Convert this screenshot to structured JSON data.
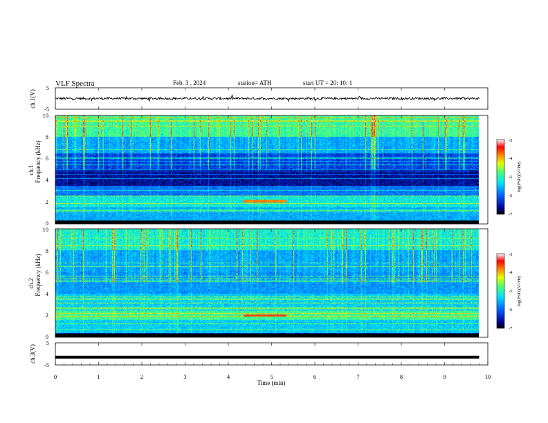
{
  "header": {
    "title": "VLF  Spectra",
    "date": "Feb. 3  , 2024",
    "station": "station= ATH",
    "start": "start  UT  =   20: 10: 1"
  },
  "chart_data": [
    {
      "name": "ch1-waveform",
      "type": "line",
      "ylabel": "ch.1(V)",
      "ylim": [
        -5,
        5
      ],
      "yticks": [
        "5",
        "-5"
      ],
      "x_range_min": [
        0,
        9.8
      ],
      "baseline_v": 0
    },
    {
      "name": "ch1-spectrogram",
      "type": "heatmap",
      "ylabel": "ch.1\nFrequency (kHz)",
      "ylabel_lines": [
        "ch.1",
        "Frequency (kHz)"
      ],
      "ylim": [
        0,
        10
      ],
      "yticks": [
        "0",
        "2",
        "4",
        "6",
        "8",
        "10"
      ],
      "x_range_min": [
        0,
        9.8
      ],
      "colorbar": {
        "label": "log(PSD)(V²/Hz)",
        "ticks": [
          "-3",
          "-4",
          "-5",
          "-6",
          "-7"
        ],
        "range": [
          -7,
          -3
        ]
      },
      "bands_khz": [
        {
          "from": 0,
          "to": 0.3,
          "level": -7
        },
        {
          "from": 0.3,
          "to": 1.5,
          "level": -5.6
        },
        {
          "from": 1.5,
          "to": 2.6,
          "level": -5.2
        },
        {
          "from": 2.6,
          "to": 3.5,
          "level": -5.9
        },
        {
          "from": 3.5,
          "to": 5.0,
          "level": -6.6
        },
        {
          "from": 5.0,
          "to": 6.5,
          "level": -6.2
        },
        {
          "from": 6.5,
          "to": 8.0,
          "level": -5.6
        },
        {
          "from": 8.0,
          "to": 10.0,
          "level": -4.9
        }
      ],
      "event": {
        "t_min": [
          4.35,
          5.35
        ],
        "f_khz": 2.1,
        "level": -3.8
      }
    },
    {
      "name": "ch2-spectrogram",
      "type": "heatmap",
      "ylabel": "ch.2\nFrequency (kHz)",
      "ylabel_lines": [
        "ch.2",
        "Frequency (kHz)"
      ],
      "ylim": [
        0,
        10
      ],
      "yticks": [
        "0",
        "2",
        "4",
        "6",
        "8",
        "10"
      ],
      "x_range_min": [
        0,
        9.8
      ],
      "colorbar": {
        "label": "log(PSD)(V²/Hz)",
        "ticks": [
          "-3",
          "-4",
          "-5",
          "-6",
          "-7"
        ],
        "range": [
          -7,
          -3
        ]
      },
      "bands_khz": [
        {
          "from": 0,
          "to": 0.4,
          "level": -6.6
        },
        {
          "from": 0.4,
          "to": 1.6,
          "level": -5.4
        },
        {
          "from": 1.6,
          "to": 2.4,
          "level": -4.9
        },
        {
          "from": 2.4,
          "to": 4.0,
          "level": -5.4
        },
        {
          "from": 4.0,
          "to": 6.0,
          "level": -5.7
        },
        {
          "from": 6.0,
          "to": 8.0,
          "level": -5.6
        },
        {
          "from": 8.0,
          "to": 10.0,
          "level": -5.1
        }
      ],
      "event": {
        "t_min": [
          4.35,
          5.35
        ],
        "f_khz": 2.0,
        "level": -3.6
      }
    },
    {
      "name": "ch3-waveform",
      "type": "line",
      "ylabel": "ch.3(V)",
      "ylim": [
        -5,
        5
      ],
      "yticks": [
        "5",
        "-5"
      ],
      "x_range_min": [
        0,
        9.8
      ],
      "baseline_v": -1.5
    }
  ],
  "xaxis": {
    "label": "Time  (min)",
    "ticks": [
      "0",
      "1",
      "2",
      "3",
      "4",
      "5",
      "6",
      "7",
      "8",
      "9",
      "10"
    ],
    "range": [
      0,
      10
    ]
  }
}
